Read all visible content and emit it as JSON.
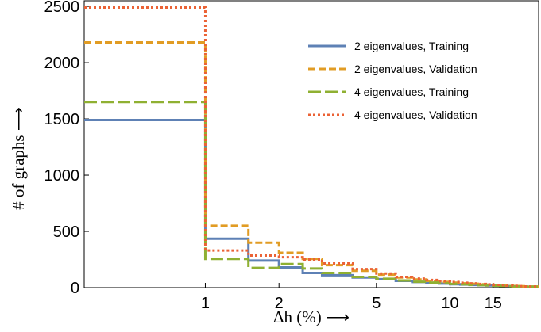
{
  "chart_data": {
    "type": "histogram",
    "xlabel": "Δh (%) ⟶",
    "ylabel": "# of graphs ⟶",
    "x_scale": "log",
    "xlim": [
      0.32,
      23
    ],
    "ylim": [
      0,
      2550
    ],
    "x_ticks": [
      1,
      2,
      5,
      10,
      15
    ],
    "y_ticks": [
      0,
      500,
      1000,
      1500,
      2000,
      2500
    ],
    "bin_edges": [
      0.32,
      1,
      1.5,
      2,
      2.5,
      3,
      4,
      5,
      6,
      7,
      8,
      9,
      10,
      11,
      12,
      13,
      14,
      15,
      16,
      17,
      18,
      19,
      20,
      23
    ],
    "legend_position": "top-right",
    "series": [
      {
        "name": "2 eigenvalues, Training",
        "color": "#5E81B5",
        "dash": "solid",
        "values": [
          1490,
          435,
          240,
          180,
          130,
          110,
          90,
          75,
          60,
          50,
          42,
          36,
          30,
          27,
          24,
          21,
          19,
          17,
          15,
          13,
          11,
          9,
          8
        ]
      },
      {
        "name": "2 eigenvalues, Validation",
        "color": "#E19C24",
        "dash": "short",
        "values": [
          2180,
          550,
          400,
          310,
          255,
          200,
          150,
          115,
          90,
          72,
          60,
          50,
          44,
          38,
          34,
          30,
          26,
          22,
          19,
          16,
          14,
          12,
          10
        ]
      },
      {
        "name": "4 eigenvalues, Training",
        "color": "#8FB032",
        "dash": "long",
        "values": [
          1650,
          255,
          175,
          210,
          170,
          130,
          95,
          78,
          63,
          52,
          45,
          38,
          33,
          29,
          25,
          22,
          19,
          17,
          15,
          13,
          11,
          10,
          8
        ]
      },
      {
        "name": "4 eigenvalues, Validation",
        "color": "#EB6235",
        "dash": "dotted",
        "values": [
          2490,
          330,
          285,
          270,
          250,
          215,
          165,
          125,
          95,
          80,
          68,
          58,
          50,
          43,
          38,
          33,
          29,
          25,
          22,
          19,
          16,
          13,
          11
        ]
      }
    ]
  }
}
